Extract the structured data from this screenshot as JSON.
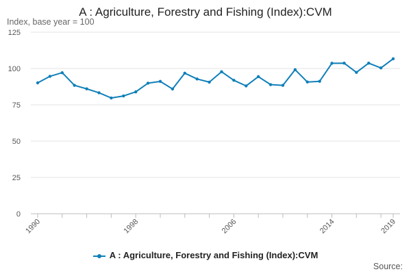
{
  "chart_data": {
    "type": "line",
    "title": "A : Agriculture, Forestry and Fishing (Index):CVM",
    "ylabel": "Index, base year = 100",
    "xlabel": "",
    "x": [
      1990,
      1991,
      1992,
      1993,
      1994,
      1995,
      1996,
      1997,
      1998,
      1999,
      2000,
      2001,
      2002,
      2003,
      2004,
      2005,
      2006,
      2007,
      2008,
      2009,
      2010,
      2011,
      2012,
      2013,
      2014,
      2015,
      2016,
      2017,
      2018,
      2019
    ],
    "series": [
      {
        "name": "A : Agriculture, Forestry and Fishing (Index):CVM",
        "color": "#0f7fb9",
        "values": [
          90.1,
          94.6,
          97.1,
          88.4,
          86.0,
          83.3,
          79.7,
          81.1,
          83.9,
          89.9,
          91.1,
          85.9,
          96.8,
          92.8,
          90.6,
          97.8,
          91.9,
          88.0,
          94.4,
          88.9,
          88.4,
          99.2,
          90.7,
          91.2,
          103.6,
          103.7,
          97.3,
          103.7,
          100.4,
          106.7
        ]
      }
    ],
    "ylim": [
      0,
      125
    ],
    "yticks": [
      0,
      25,
      50,
      75,
      100,
      125
    ],
    "xticks": [
      1990,
      1998,
      2006,
      2014,
      2019
    ],
    "grid": true,
    "legend_position": "bottom"
  },
  "source_label": "Source:"
}
